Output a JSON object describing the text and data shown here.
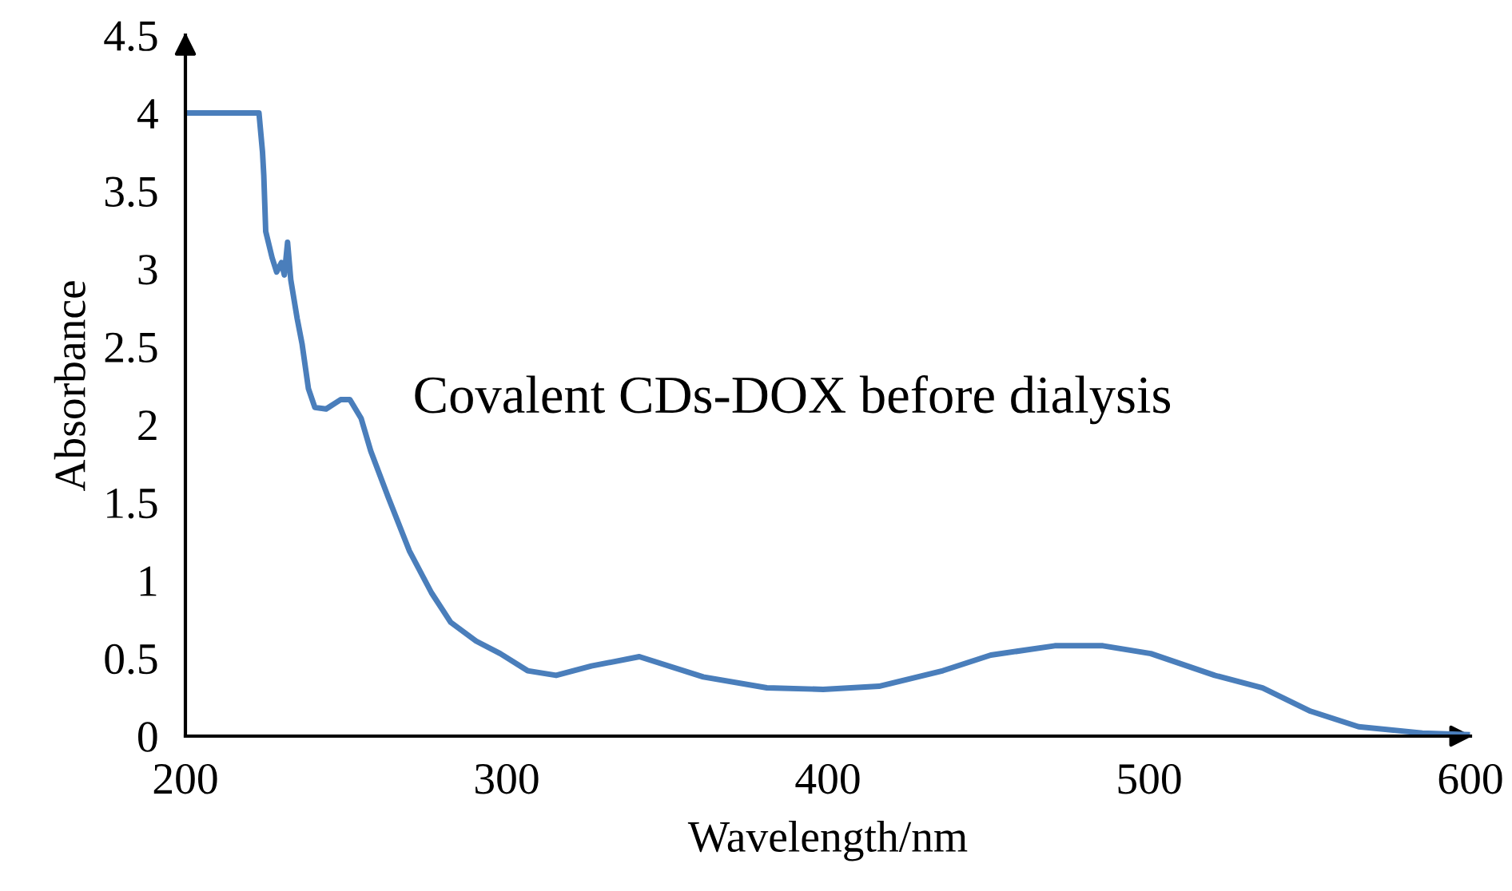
{
  "chart_data": {
    "type": "line",
    "xlabel": "Wavelength/nm",
    "ylabel": "Absorbance",
    "annotations": [
      "Covalent CDs-DOX before dialysis"
    ],
    "xlim": [
      200,
      600
    ],
    "xticks": [
      200,
      300,
      400,
      500,
      600
    ],
    "ylim": [
      0,
      4.5
    ],
    "yticks": [
      0,
      0.5,
      1,
      1.5,
      2,
      2.5,
      3,
      3.5,
      4,
      4.5
    ],
    "grid": false,
    "legend": false,
    "marker": "none",
    "line_style": "solid",
    "series": [
      {
        "color": "#4a7ebb",
        "x": [
          200,
          222.9,
          224,
          224.4,
          225,
          227,
          228.4,
          229.9,
          230.8,
          231.8,
          232.8,
          234.8,
          236.3,
          238.3,
          240.3,
          243.8,
          248.3,
          251.2,
          254.7,
          257.7,
          263.2,
          269.7,
          276.6,
          282.6,
          290.5,
          298,
          306.5,
          315.4,
          326.4,
          341.3,
          361.2,
          381,
          398.5,
          415.9,
          435.8,
          450.7,
          470.6,
          485.6,
          500.5,
          520.4,
          535.3,
          550.2,
          565.2,
          585,
          599
        ],
        "values": [
          4.0,
          4.0,
          3.75,
          3.6,
          3.24,
          3.07,
          2.98,
          3.04,
          2.96,
          3.17,
          2.93,
          2.68,
          2.52,
          2.23,
          2.11,
          2.1,
          2.16,
          2.16,
          2.04,
          1.83,
          1.53,
          1.19,
          0.92,
          0.73,
          0.61,
          0.53,
          0.42,
          0.39,
          0.45,
          0.51,
          0.38,
          0.31,
          0.3,
          0.32,
          0.42,
          0.52,
          0.58,
          0.58,
          0.53,
          0.39,
          0.31,
          0.16,
          0.06,
          0.02,
          0.01
        ]
      }
    ]
  }
}
